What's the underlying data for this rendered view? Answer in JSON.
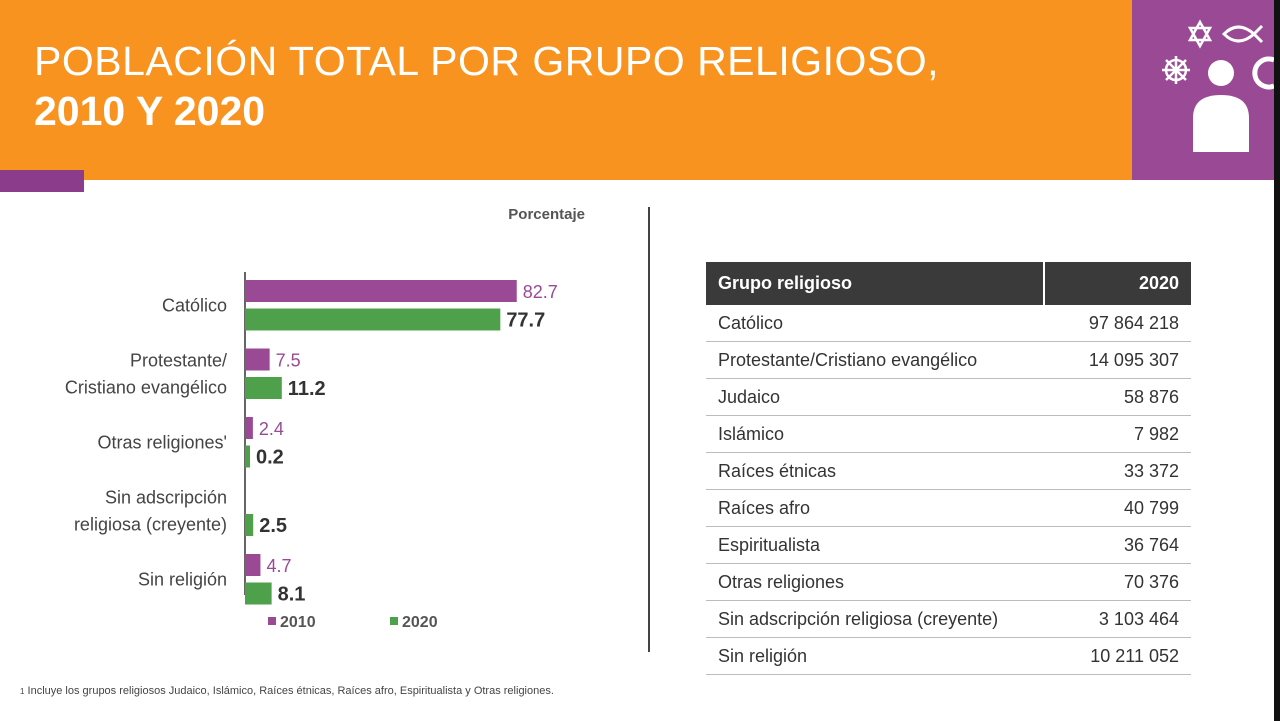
{
  "header": {
    "title_line1": "POBLACIÓN TOTAL POR GRUPO RELIGIOSO,",
    "title_line2": "2010 Y 2020",
    "icons": [
      "star-of-david-icon",
      "ichthys-icon",
      "dharma-wheel-icon",
      "person-icon",
      "crescent-icon"
    ]
  },
  "colors": {
    "banner": "#f7931e",
    "accent": "#9a4a94",
    "series_2010": "#9a4a94",
    "series_2020": "#4fa04a"
  },
  "chart_data": {
    "type": "bar",
    "orientation": "horizontal",
    "title": "Porcentaje",
    "categories": [
      [
        "Católico"
      ],
      [
        "Protestante/",
        "Cristiano evangélico"
      ],
      [
        "Otras religiones'"
      ],
      [
        "Sin adscripción",
        "religiosa (creyente)"
      ],
      [
        "Sin religión"
      ]
    ],
    "series": [
      {
        "name": "2010",
        "values": [
          82.7,
          7.5,
          2.4,
          null,
          4.7
        ],
        "labels": [
          "82.7",
          "7.5",
          "2.4",
          "",
          "4.7"
        ]
      },
      {
        "name": "2020",
        "values": [
          77.7,
          11.2,
          0.2,
          2.5,
          8.1
        ],
        "labels": [
          "77.7",
          "11.2",
          "0.2",
          "2.5",
          "8.1"
        ]
      }
    ],
    "xlim": [
      0,
      100
    ],
    "grid": false,
    "legend": "bottom"
  },
  "table": {
    "headers": [
      "Grupo religioso",
      "2020"
    ],
    "rows": [
      [
        "Católico",
        "97 864 218"
      ],
      [
        "Protestante/Cristiano evangélico",
        "14 095 307"
      ],
      [
        "Judaico",
        "58 876"
      ],
      [
        "Islámico",
        "7 982"
      ],
      [
        "Raíces étnicas",
        "33 372"
      ],
      [
        "Raíces afro",
        "40 799"
      ],
      [
        "Espiritualista",
        "36 764"
      ],
      [
        "Otras religiones",
        "70 376"
      ],
      [
        "Sin adscripción religiosa (creyente)",
        "3 103 464"
      ],
      [
        "Sin religión",
        "10 211 052"
      ]
    ]
  },
  "footnote": {
    "marker": "1",
    "text": "Incluye los grupos religiosos Judaico, Islámico, Raíces étnicas, Raíces afro, Espiritualista y Otras religiones."
  }
}
